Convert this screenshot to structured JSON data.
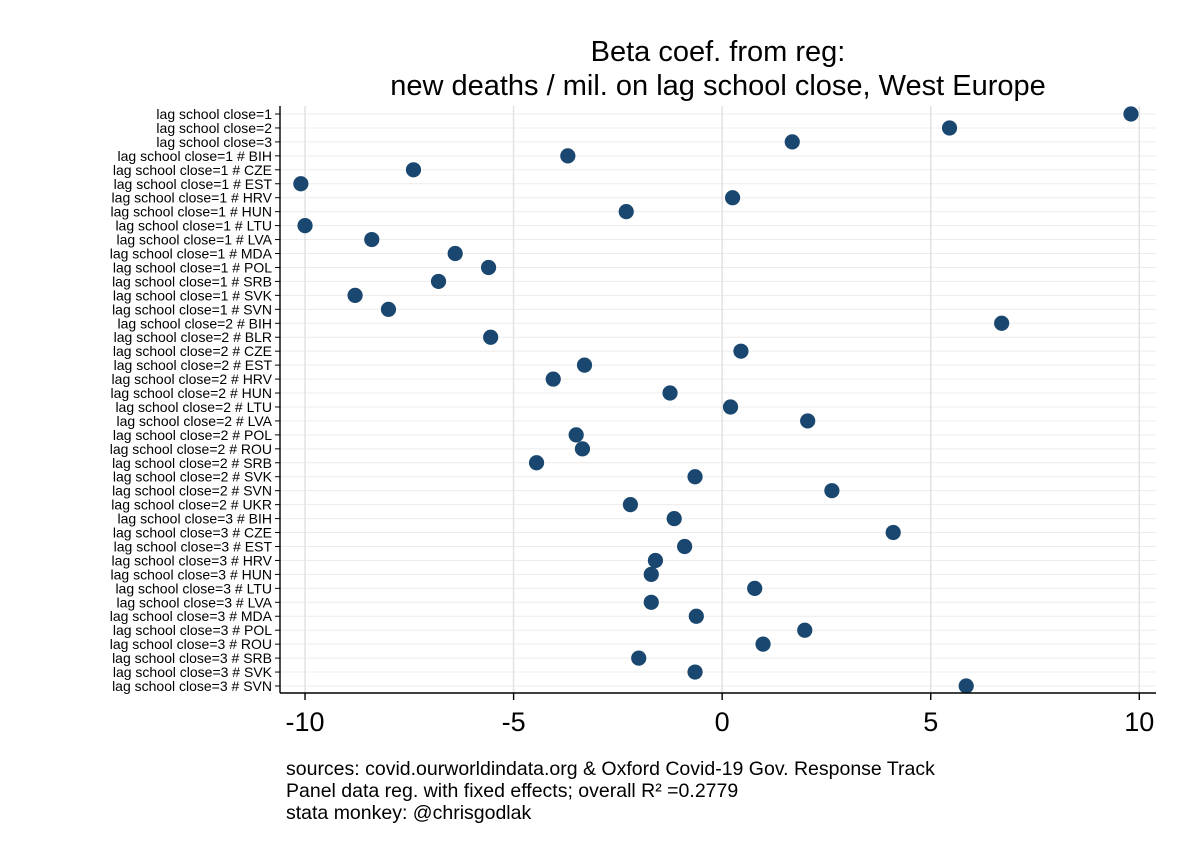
{
  "chart_data": {
    "type": "scatter",
    "title": "Beta coef. from reg:",
    "subtitle": "new deaths / mil. on lag school close, West Europe",
    "xlim": [
      -10.6,
      10.4
    ],
    "xticks": [
      -10,
      -5,
      0,
      5,
      10
    ],
    "xtick_labels": [
      "-10",
      "-5",
      "0",
      "5",
      "10"
    ],
    "grid": "vertical and horizontal",
    "legend": "none",
    "marker_color": "#1a476f",
    "categories": [
      "lag school close=1",
      "lag school close=2",
      "lag school close=3",
      "lag school close=1 # BIH",
      "lag school close=1 # CZE",
      "lag school close=1 # EST",
      "lag school close=1 # HRV",
      "lag school close=1 # HUN",
      "lag school close=1 # LTU",
      "lag school close=1 # LVA",
      "lag school close=1 # MDA",
      "lag school close=1 # POL",
      "lag school close=1 # SRB",
      "lag school close=1 # SVK",
      "lag school close=1 # SVN",
      "lag school close=2 # BIH",
      "lag school close=2 # BLR",
      "lag school close=2 # CZE",
      "lag school close=2 # EST",
      "lag school close=2 # HRV",
      "lag school close=2 # HUN",
      "lag school close=2 # LTU",
      "lag school close=2 # LVA",
      "lag school close=2 # POL",
      "lag school close=2 # ROU",
      "lag school close=2 # SRB",
      "lag school close=2 # SVK",
      "lag school close=2 # SVN",
      "lag school close=2 # UKR",
      "lag school close=3 # BIH",
      "lag school close=3 # CZE",
      "lag school close=3 # EST",
      "lag school close=3 # HRV",
      "lag school close=3 # HUN",
      "lag school close=3 # LTU",
      "lag school close=3 # LVA",
      "lag school close=3 # MDA",
      "lag school close=3 # POL",
      "lag school close=3 # ROU",
      "lag school close=3 # SRB",
      "lag school close=3 # SVK",
      "lag school close=3 # SVN"
    ],
    "values": [
      9.8,
      5.45,
      1.68,
      -3.7,
      -7.4,
      -10.1,
      0.25,
      -2.3,
      -10.0,
      -8.4,
      -6.4,
      -5.6,
      -6.8,
      -8.8,
      -8.0,
      6.7,
      -5.55,
      0.45,
      -3.3,
      -4.05,
      -1.25,
      0.2,
      2.05,
      -3.5,
      -3.35,
      -4.45,
      -0.65,
      2.63,
      -2.2,
      -1.15,
      4.1,
      -0.9,
      -1.6,
      -1.7,
      0.78,
      -1.7,
      -0.62,
      1.98,
      0.98,
      -2.0,
      -0.65,
      5.85
    ]
  },
  "notes": {
    "line1": "sources: covid.ourworldindata.org & Oxford Covid-19 Gov. Response Track",
    "line2": "Panel data reg. with fixed effects; overall R² =0.2779",
    "line3": "stata monkey: @chrisgodlak"
  }
}
